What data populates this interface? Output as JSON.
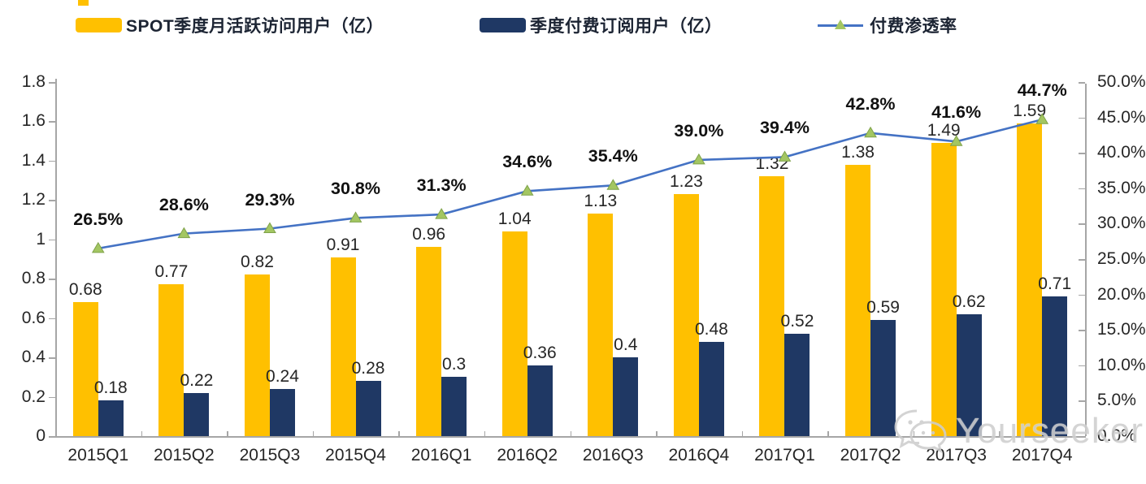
{
  "legend": {
    "mau_label": "SPOT季度月活跃访问用户（亿）",
    "paid_label": "季度付费订阅用户（亿）",
    "penetration_label": "付费渗透率"
  },
  "watermark": {
    "icon": "wechat-icon",
    "text": "Yourseeker"
  },
  "colors": {
    "mau_bar": "#FFC000",
    "paid_bar": "#1F3864",
    "line": "#4472C4",
    "marker_fill": "#A3C662",
    "marker_stroke": "#7FA24A",
    "axis": "#A6A6A6",
    "label": "#262626"
  },
  "chart_data": {
    "type": "bar",
    "subtype": "grouped bars with secondary-axis line",
    "categories": [
      "2015Q1",
      "2015Q2",
      "2015Q3",
      "2015Q4",
      "2016Q1",
      "2016Q2",
      "2016Q3",
      "2016Q4",
      "2017Q1",
      "2017Q2",
      "2017Q3",
      "2017Q4"
    ],
    "series": [
      {
        "name": "SPOT季度月活跃访问用户（亿）",
        "type": "bar",
        "axis": "left",
        "values": [
          0.68,
          0.77,
          0.82,
          0.91,
          0.96,
          1.04,
          1.13,
          1.23,
          1.32,
          1.38,
          1.49,
          1.59
        ],
        "labels": [
          "0.68",
          "0.77",
          "0.82",
          "0.91",
          "0.96",
          "1.04",
          "1.13",
          "1.23",
          "1.32",
          "1.38",
          "1.49",
          "1.59"
        ]
      },
      {
        "name": "季度付费订阅用户（亿）",
        "type": "bar",
        "axis": "left",
        "values": [
          0.18,
          0.22,
          0.24,
          0.28,
          0.3,
          0.36,
          0.4,
          0.48,
          0.52,
          0.59,
          0.62,
          0.71
        ],
        "labels": [
          "0.18",
          "0.22",
          "0.24",
          "0.28",
          "0.3",
          "0.36",
          "0.4",
          "0.48",
          "0.52",
          "0.59",
          "0.62",
          "0.71"
        ]
      },
      {
        "name": "付费渗透率",
        "type": "line",
        "axis": "right",
        "values": [
          26.5,
          28.6,
          29.3,
          30.8,
          31.3,
          34.6,
          35.4,
          39.0,
          39.4,
          42.8,
          41.6,
          44.7
        ],
        "labels": [
          "26.5%",
          "28.6%",
          "29.3%",
          "30.8%",
          "31.3%",
          "34.6%",
          "35.4%",
          "39.0%",
          "39.4%",
          "42.8%",
          "41.6%",
          "44.7%"
        ]
      }
    ],
    "title": "",
    "xlabel": "",
    "ylabel_left": "",
    "ylabel_right": "",
    "left_axis": {
      "min": 0,
      "max": 1.8,
      "ticks": [
        "0",
        "0.2",
        "0.4",
        "0.6",
        "0.8",
        "1",
        "1.2",
        "1.4",
        "1.6",
        "1.8"
      ]
    },
    "right_axis": {
      "min": 0,
      "max": 50,
      "ticks": [
        "0.0%",
        "5.0%",
        "10.0%",
        "15.0%",
        "20.0%",
        "25.0%",
        "30.0%",
        "35.0%",
        "40.0%",
        "45.0%",
        "50.0%"
      ]
    },
    "grid": false,
    "legend_position": "top"
  }
}
